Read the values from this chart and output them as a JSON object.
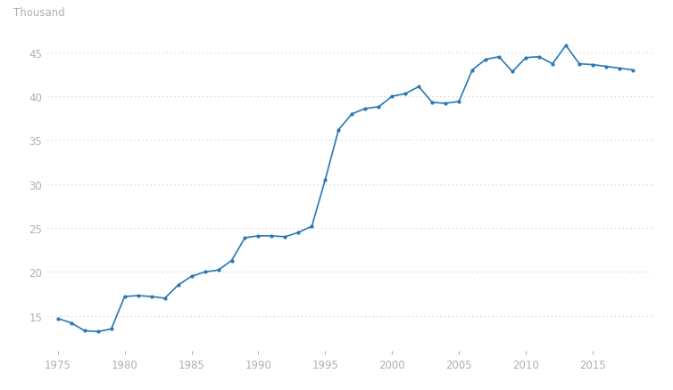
{
  "years": [
    1975,
    1976,
    1977,
    1978,
    1979,
    1980,
    1981,
    1982,
    1983,
    1984,
    1985,
    1986,
    1987,
    1988,
    1989,
    1990,
    1991,
    1992,
    1993,
    1994,
    1995,
    1996,
    1997,
    1998,
    1999,
    2000,
    2001,
    2002,
    2003,
    2004,
    2005,
    2006,
    2007,
    2008,
    2009,
    2010,
    2011,
    2012,
    2013,
    2014,
    2015,
    2016,
    2017,
    2018
  ],
  "values": [
    14.7,
    14.2,
    13.3,
    13.2,
    13.5,
    17.2,
    17.3,
    17.2,
    17.0,
    18.5,
    19.5,
    20.0,
    20.2,
    21.3,
    23.9,
    24.1,
    24.1,
    24.0,
    24.5,
    25.2,
    30.5,
    36.2,
    38.0,
    38.6,
    38.8,
    40.0,
    40.3,
    41.1,
    39.3,
    39.2,
    39.4,
    43.0,
    44.2,
    44.5,
    42.8,
    44.4,
    44.5,
    43.7,
    45.8,
    43.7,
    43.6,
    43.4,
    43.2,
    43.0
  ],
  "line_color": "#2878b5",
  "marker": ".",
  "markersize": 4,
  "linewidth": 1.2,
  "background_color": "#ffffff",
  "grid_color": "#c8c8c8",
  "ylabel": "Thousand",
  "ylim": [
    11,
    47.5
  ],
  "yticks": [
    15,
    20,
    25,
    30,
    35,
    40,
    45
  ],
  "xlim": [
    1974.2,
    2019.5
  ],
  "xticks": [
    1975,
    1980,
    1985,
    1990,
    1995,
    2000,
    2005,
    2010,
    2015
  ],
  "tick_color": "#b0b0b0",
  "label_color": "#b0b0b0",
  "ylabel_fontsize": 8.5,
  "tick_fontsize": 8.5
}
